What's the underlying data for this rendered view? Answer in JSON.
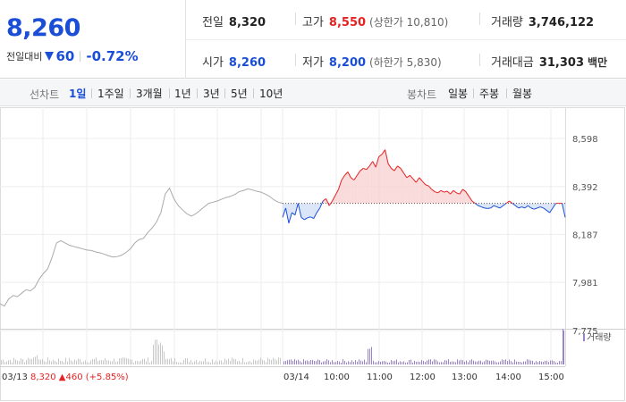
{
  "quote": {
    "price": "8,260",
    "change_label": "전일대비",
    "change_value": "60",
    "change_pct": "-0.72%",
    "prev_close": {
      "label": "전일",
      "value": "8,320"
    },
    "open": {
      "label": "시가",
      "value": "8,260"
    },
    "high": {
      "label": "고가",
      "value": "8,550",
      "limit": "(상한가 10,810)"
    },
    "low": {
      "label": "저가",
      "value": "8,200",
      "limit": "(하한가 5,830)"
    },
    "volume": {
      "label": "거래량",
      "value": "3,746,122"
    },
    "amount": {
      "label": "거래대금",
      "value": "31,303",
      "unit": "백만"
    }
  },
  "toolbar": {
    "line_label": "선차트",
    "line_periods": [
      "1일",
      "1주일",
      "3개월",
      "1년",
      "3년",
      "5년",
      "10년"
    ],
    "active_period": "1일",
    "candle_label": "봉차트",
    "candle_periods": [
      "일봉",
      "주봉",
      "월봉"
    ]
  },
  "colors": {
    "up": "#e62222",
    "down": "#1a4ed6",
    "prev": "#aaaaaa",
    "volume": "#9a84c9"
  },
  "chart_data": {
    "type": "line",
    "prev_day_label": "03/13",
    "prev_day_summary": {
      "close": "8,320",
      "change": "460",
      "pct": "(+5.85%)"
    },
    "today_label": "03/14",
    "y_ticks": [
      "8,598",
      "8,392",
      "8,187",
      "7,981",
      "7,775"
    ],
    "y_tick_values": [
      8598,
      8392,
      8187,
      7981,
      7775
    ],
    "x_ticks": [
      "10:00",
      "11:00",
      "12:00",
      "13:00",
      "14:00",
      "15:00"
    ],
    "baseline": 8320,
    "volume_legend": "거래량",
    "prev_series": [
      [
        0,
        7890
      ],
      [
        2,
        7880
      ],
      [
        4,
        7910
      ],
      [
        6,
        7925
      ],
      [
        8,
        7920
      ],
      [
        10,
        7935
      ],
      [
        12,
        7950
      ],
      [
        14,
        7945
      ],
      [
        16,
        7960
      ],
      [
        18,
        7995
      ],
      [
        20,
        8020
      ],
      [
        22,
        8040
      ],
      [
        24,
        8090
      ],
      [
        26,
        8150
      ],
      [
        28,
        8160
      ],
      [
        30,
        8150
      ],
      [
        32,
        8140
      ],
      [
        34,
        8135
      ],
      [
        36,
        8130
      ],
      [
        38,
        8125
      ],
      [
        40,
        8120
      ],
      [
        42,
        8118
      ],
      [
        44,
        8112
      ],
      [
        46,
        8108
      ],
      [
        48,
        8102
      ],
      [
        50,
        8095
      ],
      [
        52,
        8090
      ],
      [
        54,
        8092
      ],
      [
        56,
        8098
      ],
      [
        58,
        8110
      ],
      [
        60,
        8125
      ],
      [
        62,
        8150
      ],
      [
        64,
        8165
      ],
      [
        66,
        8170
      ],
      [
        68,
        8195
      ],
      [
        70,
        8215
      ],
      [
        72,
        8240
      ],
      [
        74,
        8280
      ],
      [
        76,
        8360
      ],
      [
        78,
        8385
      ],
      [
        80,
        8340
      ],
      [
        82,
        8310
      ],
      [
        84,
        8292
      ],
      [
        86,
        8275
      ],
      [
        88,
        8265
      ],
      [
        90,
        8275
      ],
      [
        92,
        8290
      ],
      [
        94,
        8305
      ],
      [
        96,
        8320
      ],
      [
        98,
        8325
      ],
      [
        100,
        8330
      ],
      [
        102,
        8338
      ],
      [
        104,
        8345
      ],
      [
        106,
        8350
      ],
      [
        108,
        8358
      ],
      [
        110,
        8370
      ],
      [
        112,
        8375
      ],
      [
        114,
        8382
      ],
      [
        116,
        8378
      ],
      [
        118,
        8372
      ],
      [
        120,
        8368
      ],
      [
        122,
        8360
      ],
      [
        124,
        8350
      ],
      [
        126,
        8335
      ],
      [
        128,
        8325
      ],
      [
        130,
        8320
      ]
    ],
    "today_series": [
      [
        0,
        8260
      ],
      [
        2,
        8300
      ],
      [
        4,
        8235
      ],
      [
        6,
        8280
      ],
      [
        8,
        8270
      ],
      [
        10,
        8320
      ],
      [
        12,
        8260
      ],
      [
        14,
        8250
      ],
      [
        16,
        8258
      ],
      [
        18,
        8262
      ],
      [
        20,
        8255
      ],
      [
        22,
        8280
      ],
      [
        24,
        8300
      ],
      [
        26,
        8330
      ],
      [
        28,
        8340
      ],
      [
        30,
        8310
      ],
      [
        32,
        8330
      ],
      [
        34,
        8355
      ],
      [
        36,
        8380
      ],
      [
        38,
        8420
      ],
      [
        40,
        8440
      ],
      [
        42,
        8455
      ],
      [
        44,
        8430
      ],
      [
        46,
        8420
      ],
      [
        48,
        8440
      ],
      [
        50,
        8460
      ],
      [
        52,
        8470
      ],
      [
        54,
        8465
      ],
      [
        56,
        8480
      ],
      [
        58,
        8500
      ],
      [
        60,
        8475
      ],
      [
        62,
        8520
      ],
      [
        64,
        8530
      ],
      [
        66,
        8550
      ],
      [
        68,
        8490
      ],
      [
        70,
        8470
      ],
      [
        72,
        8460
      ],
      [
        74,
        8480
      ],
      [
        76,
        8470
      ],
      [
        78,
        8450
      ],
      [
        80,
        8430
      ],
      [
        82,
        8440
      ],
      [
        84,
        8425
      ],
      [
        86,
        8410
      ],
      [
        88,
        8430
      ],
      [
        90,
        8415
      ],
      [
        92,
        8400
      ],
      [
        94,
        8395
      ],
      [
        96,
        8380
      ],
      [
        98,
        8370
      ],
      [
        100,
        8365
      ],
      [
        102,
        8375
      ],
      [
        104,
        8368
      ],
      [
        106,
        8372
      ],
      [
        108,
        8360
      ],
      [
        110,
        8375
      ],
      [
        112,
        8365
      ],
      [
        114,
        8360
      ],
      [
        116,
        8380
      ],
      [
        118,
        8370
      ],
      [
        120,
        8350
      ],
      [
        122,
        8330
      ],
      [
        124,
        8320
      ],
      [
        126,
        8310
      ],
      [
        128,
        8305
      ],
      [
        130,
        8300
      ],
      [
        132,
        8298
      ],
      [
        134,
        8300
      ],
      [
        136,
        8310
      ],
      [
        138,
        8305
      ],
      [
        140,
        8300
      ],
      [
        142,
        8310
      ],
      [
        144,
        8320
      ],
      [
        146,
        8330
      ],
      [
        148,
        8320
      ],
      [
        150,
        8310
      ],
      [
        152,
        8300
      ],
      [
        154,
        8305
      ],
      [
        156,
        8300
      ],
      [
        158,
        8310
      ],
      [
        160,
        8300
      ],
      [
        162,
        8295
      ],
      [
        164,
        8300
      ],
      [
        166,
        8305
      ],
      [
        168,
        8300
      ],
      [
        170,
        8290
      ],
      [
        172,
        8280
      ],
      [
        174,
        8300
      ],
      [
        176,
        8320
      ],
      [
        178,
        8320
      ],
      [
        180,
        8320
      ],
      [
        182,
        8260
      ]
    ]
  }
}
